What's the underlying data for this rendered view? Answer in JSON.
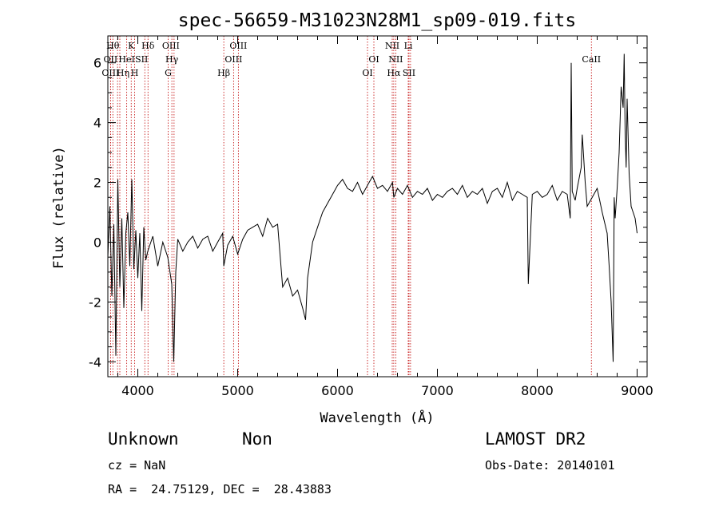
{
  "chart_data": {
    "type": "line",
    "title": "spec-56659-M31023N28M1_sp09-019.fits",
    "xlabel": "Wavelength (Å)",
    "ylabel": "Flux (relative)",
    "xlim": [
      3700,
      9100
    ],
    "ylim": [
      -4.5,
      6.9
    ],
    "xticks": [
      4000,
      5000,
      6000,
      7000,
      8000,
      9000
    ],
    "xtick_labels": [
      "4000",
      "5000",
      "6000",
      "7000",
      "8000",
      "9000"
    ],
    "yticks": [
      -4,
      -2,
      0,
      2,
      4,
      6
    ],
    "ytick_labels": [
      "-4",
      "-2",
      "0",
      "2",
      "4",
      "6"
    ],
    "grid": false,
    "series": [
      {
        "x": [
          3700,
          3720,
          3740,
          3760,
          3780,
          3800,
          3820,
          3840,
          3860,
          3880,
          3900,
          3920,
          3940,
          3960,
          3980,
          4000,
          4020,
          4040,
          4060,
          4080,
          4100,
          4150,
          4200,
          4250,
          4300,
          4340,
          4360,
          4380,
          4400,
          4450,
          4500,
          4550,
          4600,
          4650,
          4700,
          4750,
          4800,
          4850,
          4861,
          4900,
          4950,
          5000,
          5050,
          5100,
          5150,
          5200,
          5250,
          5300,
          5350,
          5400,
          5450,
          5500,
          5550,
          5600,
          5650,
          5680,
          5700,
          5750,
          5800,
          5850,
          5900,
          5950,
          6000,
          6050,
          6100,
          6150,
          6200,
          6250,
          6300,
          6350,
          6400,
          6450,
          6500,
          6550,
          6563,
          6600,
          6650,
          6700,
          6750,
          6800,
          6850,
          6900,
          6950,
          7000,
          7050,
          7100,
          7150,
          7200,
          7250,
          7300,
          7350,
          7400,
          7450,
          7500,
          7550,
          7600,
          7650,
          7700,
          7750,
          7800,
          7850,
          7900,
          7910,
          7950,
          8000,
          8050,
          8100,
          8150,
          8200,
          8250,
          8300,
          8330,
          8340,
          8350,
          8380,
          8400,
          8440,
          8450,
          8460,
          8480,
          8500,
          8550,
          8600,
          8650,
          8700,
          8720,
          8740,
          8760,
          8770,
          8780,
          8800,
          8820,
          8840,
          8860,
          8870,
          8880,
          8890,
          8900,
          8920,
          8940,
          8960,
          8980,
          9000
        ],
        "y": [
          -0.5,
          1.2,
          -1.8,
          0.6,
          -3.8,
          2.1,
          -1.5,
          0.8,
          -2.2,
          0.3,
          1.0,
          -0.8,
          2.1,
          -0.9,
          0.4,
          -1.2,
          0.3,
          -2.3,
          0.5,
          -0.6,
          -0.3,
          0.2,
          -0.8,
          0.0,
          -0.5,
          -1.4,
          -4.0,
          -1.0,
          0.1,
          -0.3,
          0.0,
          0.2,
          -0.2,
          0.1,
          0.2,
          -0.3,
          0.0,
          0.3,
          -0.8,
          -0.1,
          0.2,
          -0.4,
          0.1,
          0.4,
          0.5,
          0.6,
          0.2,
          0.8,
          0.5,
          0.6,
          -1.5,
          -1.2,
          -1.8,
          -1.6,
          -2.2,
          -2.6,
          -1.2,
          0.0,
          0.5,
          1.0,
          1.3,
          1.6,
          1.9,
          2.1,
          1.8,
          1.7,
          2.0,
          1.6,
          1.9,
          2.2,
          1.8,
          1.9,
          1.7,
          2.0,
          1.5,
          1.8,
          1.6,
          1.9,
          1.5,
          1.7,
          1.6,
          1.8,
          1.4,
          1.6,
          1.5,
          1.7,
          1.8,
          1.6,
          1.9,
          1.5,
          1.7,
          1.6,
          1.8,
          1.3,
          1.7,
          1.8,
          1.5,
          2.0,
          1.4,
          1.7,
          1.6,
          1.5,
          -1.4,
          1.6,
          1.7,
          1.5,
          1.6,
          1.9,
          1.4,
          1.7,
          1.6,
          0.8,
          6.0,
          1.7,
          1.4,
          1.8,
          2.5,
          3.6,
          3.1,
          2.0,
          1.2,
          1.5,
          1.8,
          1.0,
          0.3,
          -0.8,
          -2.0,
          -4.0,
          1.5,
          0.8,
          1.8,
          3.0,
          5.2,
          4.5,
          6.3,
          3.7,
          2.5,
          4.8,
          2.3,
          1.2,
          1.0,
          0.8,
          0.3
        ]
      }
    ],
    "line_markers": [
      {
        "wavelength": 3750,
        "label": "Hθ",
        "row": 0,
        "offset": 0
      },
      {
        "wavelength": 3727,
        "label": "OII",
        "row": 1,
        "offset": 0
      },
      {
        "wavelength": 3727,
        "label": "OIII",
        "row": 2,
        "offset": 0
      },
      {
        "wavelength": 3797,
        "label": "",
        "row": 1,
        "offset": 0
      },
      {
        "wavelength": 3820,
        "label": "Hη",
        "row": 2,
        "offset": 4
      },
      {
        "wavelength": 3889,
        "label": "HeI",
        "row": 1,
        "offset": 0
      },
      {
        "wavelength": 3934,
        "label": "K",
        "row": 0,
        "offset": 0
      },
      {
        "wavelength": 3968,
        "label": "H",
        "row": 2,
        "offset": 0
      },
      {
        "wavelength": 4070,
        "label": "SII",
        "row": 1,
        "offset": -4
      },
      {
        "wavelength": 4102,
        "label": "Hδ",
        "row": 0,
        "offset": 0
      },
      {
        "wavelength": 4304,
        "label": "G",
        "row": 2,
        "offset": 0
      },
      {
        "wavelength": 4341,
        "label": "Hγ",
        "row": 1,
        "offset": 0
      },
      {
        "wavelength": 4363,
        "label": "OIII",
        "row": 0,
        "offset": -4
      },
      {
        "wavelength": 4861,
        "label": "Hβ",
        "row": 2,
        "offset": 0
      },
      {
        "wavelength": 4959,
        "label": "OIII",
        "row": 1,
        "offset": 0
      },
      {
        "wavelength": 5007,
        "label": "OIII",
        "row": 0,
        "offset": 0
      },
      {
        "wavelength": 6300,
        "label": "OI",
        "row": 2,
        "offset": 0
      },
      {
        "wavelength": 6364,
        "label": "OI",
        "row": 1,
        "offset": 0
      },
      {
        "wavelength": 6548,
        "label": "NII",
        "row": 0,
        "offset": 0
      },
      {
        "wavelength": 6563,
        "label": "Hα",
        "row": 2,
        "offset": 0
      },
      {
        "wavelength": 6583,
        "label": "NII",
        "row": 1,
        "offset": 0
      },
      {
        "wavelength": 6708,
        "label": "Li",
        "row": 0,
        "offset": 0
      },
      {
        "wavelength": 6716,
        "label": "SII",
        "row": 2,
        "offset": 0
      },
      {
        "wavelength": 6731,
        "label": "",
        "row": 2,
        "offset": 0
      },
      {
        "wavelength": 8542,
        "label": "CaII",
        "row": 1,
        "offset": 0
      }
    ]
  },
  "info": {
    "classification": "Unknown",
    "subclass": "Non",
    "survey": "LAMOST DR2",
    "redshift": "cz = NaN",
    "obs_date": "Obs-Date: 20140101",
    "coords": "RA =  24.75129, DEC =  28.43883"
  }
}
